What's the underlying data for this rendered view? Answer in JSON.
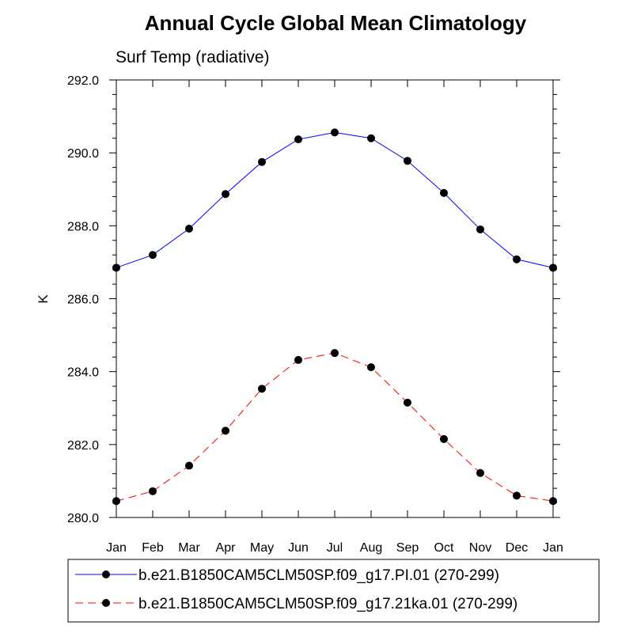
{
  "chart_data": {
    "type": "line",
    "title": "Annual Cycle Global Mean Climatology",
    "subtitle": "Surf Temp (radiative)",
    "xlabel": "",
    "ylabel": "K",
    "categories": [
      "Jan",
      "Feb",
      "Mar",
      "Apr",
      "May",
      "Jun",
      "Jul",
      "Aug",
      "Sep",
      "Oct",
      "Nov",
      "Dec",
      "Jan"
    ],
    "ylim": [
      280.0,
      292.0
    ],
    "yticks": [
      "280.0",
      "282.0",
      "284.0",
      "286.0",
      "288.0",
      "290.0",
      "292.0"
    ],
    "grid": false,
    "legend_position": "bottom",
    "series": [
      {
        "name": "b.e21.B1850CAM5CLM50SP.f09_g17.PI.01 (270-299)",
        "color": "#0000ff",
        "dash": "solid",
        "values": [
          286.85,
          287.2,
          287.92,
          288.87,
          289.75,
          290.37,
          290.56,
          290.4,
          289.78,
          288.9,
          287.9,
          287.08,
          286.85
        ]
      },
      {
        "name": "b.e21.B1850CAM5CLM50SP.f09_g17.21ka.01 (270-299)",
        "color": "#ff0000",
        "dash": "dashed",
        "values": [
          280.45,
          280.72,
          281.42,
          282.38,
          283.53,
          284.32,
          284.51,
          284.12,
          283.15,
          282.15,
          281.22,
          280.6,
          280.45
        ]
      }
    ]
  }
}
